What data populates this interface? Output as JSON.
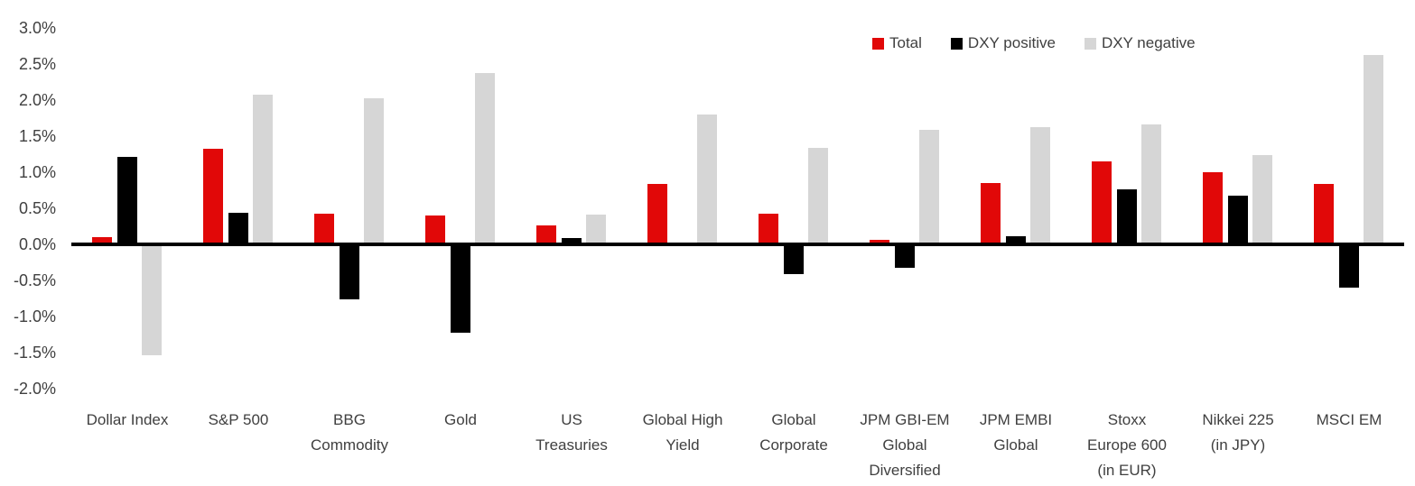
{
  "chart_data": {
    "type": "bar",
    "title": "",
    "xlabel": "",
    "ylabel": "",
    "ylim": [
      -2.0,
      3.0
    ],
    "grid": false,
    "legend_position": "top-right",
    "yticks": [
      {
        "label": "3.0%",
        "value": 3.0
      },
      {
        "label": "2.5%",
        "value": 2.5
      },
      {
        "label": "2.0%",
        "value": 2.0
      },
      {
        "label": "1.5%",
        "value": 1.5
      },
      {
        "label": "1.0%",
        "value": 1.0
      },
      {
        "label": "0.5%",
        "value": 0.5
      },
      {
        "label": "0.0%",
        "value": 0.0
      },
      {
        "label": "-0.5%",
        "value": -0.5
      },
      {
        "label": "-1.0%",
        "value": -1.0
      },
      {
        "label": "-1.5%",
        "value": -1.5
      },
      {
        "label": "-2.0%",
        "value": -2.0
      }
    ],
    "categories": [
      {
        "label": "Dollar Index",
        "lines": [
          "Dollar Index"
        ]
      },
      {
        "label": "S&P 500",
        "lines": [
          "S&P 500"
        ]
      },
      {
        "label": "BBG Commodity",
        "lines": [
          "BBG",
          "Commodity"
        ]
      },
      {
        "label": "Gold",
        "lines": [
          "Gold"
        ]
      },
      {
        "label": "US Treasuries",
        "lines": [
          "US",
          "Treasuries"
        ]
      },
      {
        "label": "Global High Yield",
        "lines": [
          "Global High",
          "Yield"
        ]
      },
      {
        "label": "Global Corporate",
        "lines": [
          "Global",
          "Corporate"
        ]
      },
      {
        "label": "JPM GBI-EM Global Diversified",
        "lines": [
          "JPM GBI-EM",
          "Global",
          "Diversified"
        ]
      },
      {
        "label": "JPM EMBI Global",
        "lines": [
          "JPM EMBI",
          "Global"
        ]
      },
      {
        "label": "Stoxx Europe 600 (in EUR)",
        "lines": [
          "Stoxx",
          "Europe 600",
          "(in EUR)"
        ]
      },
      {
        "label": "Nikkei 225 (in JPY)",
        "lines": [
          "Nikkei 225",
          "(in JPY)"
        ]
      },
      {
        "label": "MSCI EM",
        "lines": [
          "MSCI EM"
        ]
      }
    ],
    "series": [
      {
        "name": "Total",
        "color": "#e10808",
        "values": [
          0.1,
          1.32,
          0.42,
          0.4,
          0.26,
          0.84,
          0.42,
          0.06,
          0.85,
          1.15,
          1.0,
          0.84
        ]
      },
      {
        "name": "DXY positive",
        "color": "#000000",
        "values": [
          1.21,
          0.44,
          -0.76,
          -1.23,
          0.09,
          0.0,
          -0.41,
          -0.33,
          0.11,
          0.76,
          0.67,
          -0.6
        ]
      },
      {
        "name": "DXY negative",
        "color": "#d6d6d6",
        "values": [
          -1.54,
          2.07,
          2.03,
          2.38,
          0.41,
          1.8,
          1.34,
          1.59,
          1.63,
          1.66,
          1.24,
          2.63
        ]
      }
    ],
    "colors": {
      "axis_line": "#000000",
      "tick_text": "#404040",
      "category_text": "#404040",
      "background": "#ffffff"
    }
  }
}
